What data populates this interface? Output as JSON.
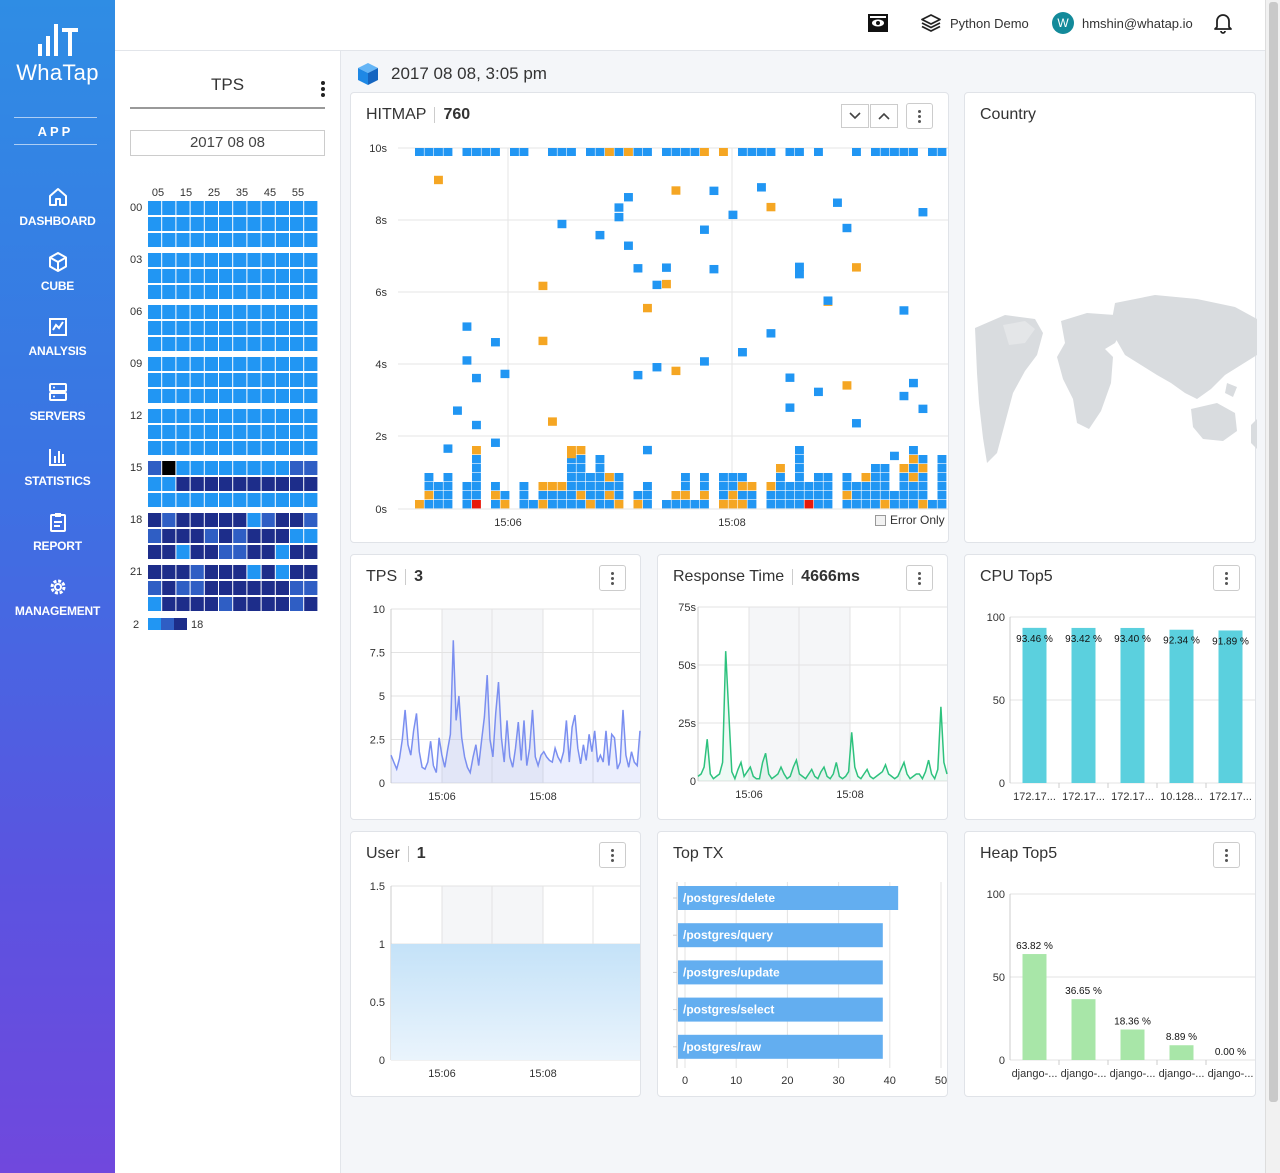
{
  "app": {
    "brand": "WhaTap",
    "section": "APP"
  },
  "nav": [
    {
      "label": "DASHBOARD",
      "icon": "home-icon"
    },
    {
      "label": "CUBE",
      "icon": "cube-icon"
    },
    {
      "label": "ANALYSIS",
      "icon": "analysis-chart-icon"
    },
    {
      "label": "SERVERS",
      "icon": "server-icon"
    },
    {
      "label": "STATISTICS",
      "icon": "bar-chart-icon"
    },
    {
      "label": "REPORT",
      "icon": "clipboard-icon"
    },
    {
      "label": "MANAGEMENT",
      "icon": "gear-icon"
    }
  ],
  "topbar": {
    "project": "Python Demo",
    "user_initial": "W",
    "user_email": "hmshin@whatap.io"
  },
  "tps_panel": {
    "title": "TPS",
    "date": "2017 08 08",
    "minute_labels": [
      "05",
      "15",
      "25",
      "35",
      "45",
      "55"
    ],
    "hour_labels": [
      "00",
      "03",
      "06",
      "09",
      "12",
      "15",
      "18",
      "21"
    ],
    "legend_min": "2",
    "legend_max": "18",
    "colors": {
      "low": "#2196f3",
      "mid": "#2f5ec4",
      "high": "#1d2d8a",
      "selected": "#000000"
    }
  },
  "header": {
    "datetime": "2017 08 08, 3:05 pm"
  },
  "hitmap": {
    "title": "HITMAP",
    "value": "760",
    "y_labels": [
      "10s",
      "8s",
      "6s",
      "4s",
      "2s",
      "0s"
    ],
    "x_labels": [
      "15:06",
      "15:08"
    ],
    "error_only_label": "Error Only",
    "colors": {
      "normal": "#2196f3",
      "slow": "#f5a623",
      "error": "#e8190a"
    }
  },
  "country": {
    "title": "Country"
  },
  "tps_chart": {
    "title": "TPS",
    "value": "3"
  },
  "response_chart": {
    "title": "Response Time",
    "value": "4666ms"
  },
  "cpu_chart": {
    "title": "CPU Top5"
  },
  "user_chart": {
    "title": "User",
    "value": "1"
  },
  "toptx_chart": {
    "title": "Top TX"
  },
  "heap_chart": {
    "title": "Heap Top5"
  },
  "chart_data": [
    {
      "id": "tps",
      "type": "area",
      "title": "TPS",
      "x_labels": [
        "15:06",
        "15:08"
      ],
      "y_ticks": [
        "10",
        "7.5",
        "5",
        "2.5",
        "0"
      ],
      "ylim": [
        0,
        10
      ],
      "values": [
        1.6,
        1.2,
        0.8,
        1.4,
        2.5,
        4.2,
        2.2,
        1.6,
        3.0,
        4.0,
        1.8,
        0.9,
        0.8,
        1.2,
        2.4,
        1.0,
        0.6,
        2.6,
        1.6,
        0.9,
        1.9,
        2.8,
        8.2,
        3.6,
        5.0,
        2.6,
        1.5,
        0.9,
        0.6,
        1.5,
        2.2,
        1.0,
        2.4,
        3.8,
        6.2,
        2.5,
        1.5,
        4.0,
        5.8,
        2.6,
        1.2,
        3.6,
        1.5,
        0.9,
        2.0,
        3.5,
        1.3,
        3.6,
        1.0,
        2.0,
        4.2,
        1.5,
        1.0,
        1.6,
        1.8,
        1.5,
        1.3,
        1.2,
        2.0,
        1.5,
        1.2,
        1.8,
        3.6,
        1.2,
        3.2,
        3.9,
        2.0,
        1.1,
        2.2,
        1.3,
        2.8,
        1.8,
        3.0,
        1.2,
        1.6,
        1.2,
        3.0,
        1.0,
        2.8,
        2.6,
        0.8,
        1.2,
        4.2,
        1.6,
        0.9,
        1.8,
        1.2,
        1.0,
        3.0
      ]
    },
    {
      "id": "response",
      "type": "area",
      "title": "Response Time",
      "x_labels": [
        "15:06",
        "15:08"
      ],
      "y_ticks": [
        "75s",
        "50s",
        "25s",
        "0"
      ],
      "ylim": [
        0,
        75
      ],
      "values": [
        2,
        3,
        6,
        18,
        3,
        1,
        2,
        3,
        8,
        56,
        30,
        4,
        1,
        5,
        8,
        2,
        4,
        6,
        2,
        1,
        1,
        8,
        12,
        3,
        1,
        2,
        3,
        6,
        3,
        1,
        2,
        6,
        9,
        3,
        2,
        1,
        3,
        5,
        2,
        1,
        4,
        6,
        2,
        1,
        3,
        8,
        2,
        1,
        2,
        4,
        21,
        6,
        2,
        1,
        3,
        5,
        2,
        1,
        2,
        3,
        4,
        7,
        3,
        2,
        1,
        2,
        5,
        8,
        3,
        1,
        2,
        3,
        3,
        1,
        4,
        9,
        3,
        1,
        5,
        32,
        8,
        3
      ]
    },
    {
      "id": "cpu",
      "type": "bar",
      "title": "CPU Top5",
      "categories": [
        "172.17...",
        "172.17...",
        "172.17...",
        "10.128...",
        "172.17..."
      ],
      "values": [
        93.46,
        93.42,
        93.4,
        92.34,
        91.89
      ],
      "labels": [
        "93.46 %",
        "93.42 %",
        "93.40 %",
        "92.34 %",
        "91.89 %"
      ],
      "y_ticks": [
        "100",
        "50",
        "0"
      ],
      "ylim": [
        0,
        100
      ]
    },
    {
      "id": "user",
      "type": "area",
      "title": "User",
      "x_labels": [
        "15:06",
        "15:08"
      ],
      "y_ticks": [
        "1.5",
        "1",
        "0.5",
        "0"
      ],
      "ylim": [
        0,
        1.5
      ],
      "values": [
        1,
        1
      ]
    },
    {
      "id": "toptx",
      "type": "bar",
      "orientation": "horizontal",
      "title": "Top TX",
      "categories": [
        "/postgres/delete",
        "/postgres/query",
        "/postgres/update",
        "/postgres/select",
        "/postgres/raw"
      ],
      "values": [
        43,
        40,
        40,
        40,
        40
      ],
      "x_ticks": [
        "0",
        "10",
        "20",
        "30",
        "40",
        "50"
      ],
      "xlim": [
        0,
        50
      ]
    },
    {
      "id": "heap",
      "type": "bar",
      "title": "Heap Top5",
      "categories": [
        "django-...",
        "django-...",
        "django-...",
        "django-...",
        "django-..."
      ],
      "values": [
        63.82,
        36.65,
        18.36,
        8.89,
        0.0
      ],
      "labels": [
        "63.82 %",
        "36.65 %",
        "18.36 %",
        "8.89 %",
        "0.00 %"
      ],
      "y_ticks": [
        "100",
        "50",
        "0"
      ],
      "ylim": [
        0,
        100
      ]
    }
  ]
}
